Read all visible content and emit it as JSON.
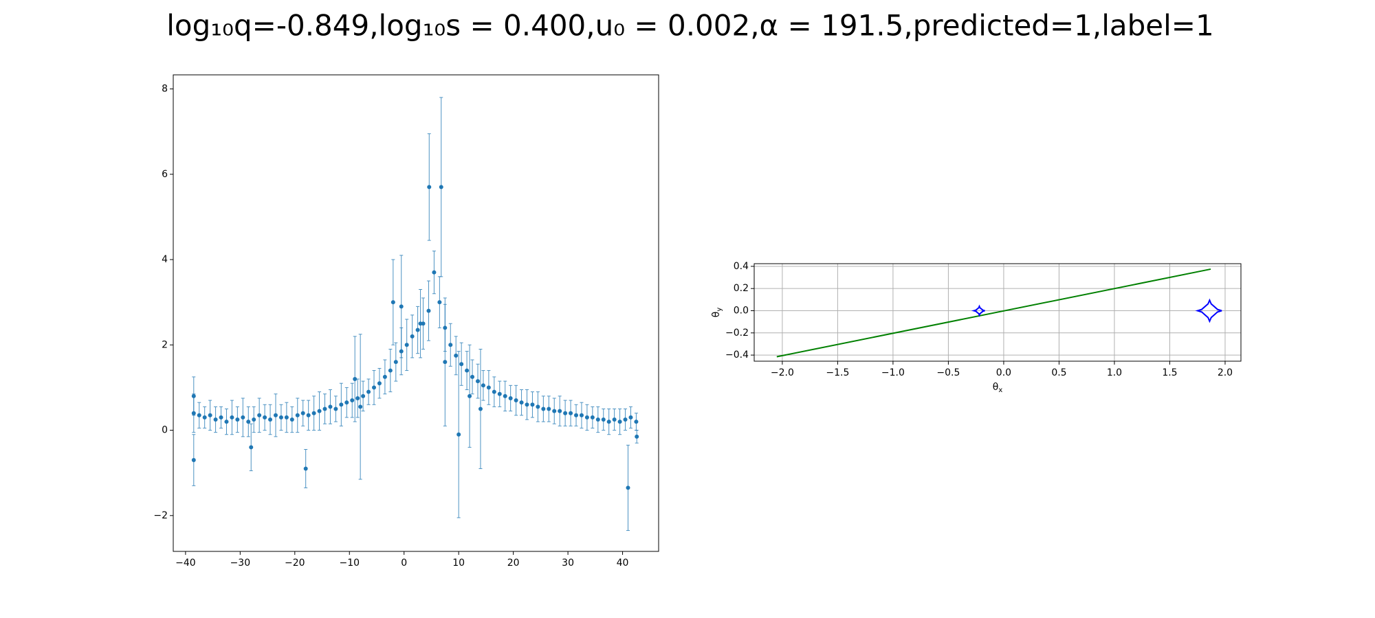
{
  "title": "log₁₀q=-0.849,log₁₀s = 0.400,u₀ = 0.002,α = 191.5,predicted=1,label=1",
  "chart_data": [
    {
      "type": "scatter",
      "xlim": [
        -42.25,
        46.6
      ],
      "ylim": [
        -2.84,
        8.33
      ],
      "xticks": [
        {
          "value": -40,
          "label": "−40"
        },
        {
          "value": -30,
          "label": "−30"
        },
        {
          "value": -20,
          "label": "−20"
        },
        {
          "value": -10,
          "label": "−10"
        },
        0,
        10,
        20,
        30,
        40
      ],
      "yticks": [
        {
          "value": -2,
          "label": "−2"
        },
        0,
        2,
        4,
        6,
        8
      ],
      "grid": false,
      "series": [
        {
          "color": "#1f77b4",
          "x": [
            -38.5,
            -37.5,
            -36.5,
            -35.5,
            -34.5,
            -33.5,
            -32.5,
            -31.5,
            -30.5,
            -29.5,
            -28.5,
            -27.5,
            -26.5,
            -25.5,
            -24.5,
            -23.5,
            -22.5,
            -21.5,
            -20.5,
            -19.5,
            -18.5,
            -17.5,
            -16.5,
            -15.5,
            -14.5,
            -13.5,
            -12.5,
            -11.5,
            -10.5,
            -9.5,
            -8.5,
            -7.5,
            -6.5,
            -5.5,
            -4.5,
            -3.5,
            -2.5,
            -1.5,
            -0.5,
            0.5,
            1.5,
            2.5,
            3.5,
            4.5,
            5.5,
            6.5,
            7.5,
            8.5,
            9.5,
            10.5,
            11.5,
            12.5,
            13.5,
            14.5,
            15.5,
            16.5,
            17.5,
            18.5,
            19.5,
            20.5,
            21.5,
            22.5,
            23.5,
            24.5,
            25.5,
            26.5,
            27.5,
            28.5,
            29.5,
            30.5,
            31.5,
            32.5,
            33.5,
            34.5,
            35.5,
            36.5,
            37.5,
            38.5,
            39.5,
            40.5,
            41.5,
            42.5,
            4.6,
            6.8,
            -38.5,
            -28,
            -18,
            41,
            42.6,
            10,
            -2,
            -0.5,
            -8,
            -38.5,
            -9,
            7.5,
            12,
            14,
            3
          ],
          "values": [
            0.4,
            0.35,
            0.3,
            0.35,
            0.25,
            0.3,
            0.2,
            0.3,
            0.25,
            0.3,
            0.2,
            0.25,
            0.35,
            0.3,
            0.25,
            0.35,
            0.3,
            0.3,
            0.25,
            0.35,
            0.4,
            0.35,
            0.4,
            0.45,
            0.5,
            0.55,
            0.5,
            0.6,
            0.65,
            0.7,
            0.75,
            0.8,
            0.9,
            1.0,
            1.1,
            1.25,
            1.4,
            1.6,
            1.85,
            2.0,
            2.2,
            2.35,
            2.5,
            2.8,
            3.7,
            3.0,
            2.4,
            2.0,
            1.75,
            1.55,
            1.4,
            1.25,
            1.15,
            1.05,
            1.0,
            0.9,
            0.85,
            0.8,
            0.75,
            0.7,
            0.65,
            0.6,
            0.6,
            0.55,
            0.5,
            0.5,
            0.45,
            0.45,
            0.4,
            0.4,
            0.35,
            0.35,
            0.3,
            0.3,
            0.25,
            0.25,
            0.2,
            0.25,
            0.2,
            0.25,
            0.3,
            0.2,
            5.7,
            5.7,
            -0.7,
            -0.4,
            -0.9,
            -1.35,
            -0.15,
            -0.1,
            3.0,
            2.9,
            0.55,
            0.8,
            1.2,
            1.6,
            0.8,
            0.5,
            2.5
          ],
          "errors": [
            0.45,
            0.3,
            0.25,
            0.35,
            0.3,
            0.25,
            0.3,
            0.4,
            0.3,
            0.45,
            0.35,
            0.3,
            0.4,
            0.3,
            0.35,
            0.5,
            0.3,
            0.35,
            0.3,
            0.4,
            0.3,
            0.35,
            0.4,
            0.45,
            0.35,
            0.4,
            0.3,
            0.5,
            0.35,
            0.4,
            0.45,
            0.35,
            0.3,
            0.4,
            0.35,
            0.4,
            0.5,
            0.45,
            0.55,
            0.6,
            0.5,
            0.55,
            0.6,
            0.7,
            0.5,
            0.6,
            0.55,
            0.5,
            0.45,
            0.5,
            0.45,
            0.4,
            0.4,
            0.35,
            0.4,
            0.35,
            0.3,
            0.35,
            0.3,
            0.35,
            0.3,
            0.35,
            0.3,
            0.35,
            0.3,
            0.3,
            0.3,
            0.35,
            0.3,
            0.3,
            0.25,
            0.3,
            0.3,
            0.25,
            0.3,
            0.25,
            0.3,
            0.25,
            0.3,
            0.25,
            0.25,
            0.2,
            1.25,
            2.1,
            0.6,
            0.55,
            0.45,
            1.0,
            0.15,
            1.95,
            1.0,
            1.2,
            1.7,
            0.45,
            1.0,
            1.5,
            1.2,
            1.4,
            0.8
          ]
        }
      ]
    },
    {
      "type": "line",
      "xlim": [
        -2.254,
        2.143
      ],
      "ylim": [
        -0.455,
        0.424
      ],
      "xticks": [
        {
          "value": -2.0,
          "label": "−2.0"
        },
        {
          "value": -1.5,
          "label": "−1.5"
        },
        {
          "value": -1.0,
          "label": "−1.0"
        },
        {
          "value": -0.5,
          "label": "−0.5"
        },
        {
          "value": 0,
          "label": "0.0"
        },
        0.5,
        {
          "value": 1.0,
          "label": "1.0"
        },
        1.5,
        {
          "value": 2.0,
          "label": "2.0"
        }
      ],
      "yticks": [
        {
          "value": -0.4,
          "label": "−0.4"
        },
        {
          "value": -0.2,
          "label": "−0.2"
        },
        {
          "value": 0,
          "label": "0.0"
        },
        0.2,
        0.4
      ],
      "grid": true,
      "xlabel": {
        "symbol": "θ",
        "subscript": "x"
      },
      "ylabel": {
        "symbol": "θ",
        "subscript": "y"
      },
      "series": [
        {
          "color": "#008000",
          "x": [
            -2.05,
            1.87
          ],
          "values": [
            -0.415,
            0.375
          ]
        },
        {
          "color": "#0000ff",
          "x": [
            -0.17,
            -0.188,
            -0.214,
            -0.22,
            -0.226,
            -0.252,
            -0.27,
            -0.252,
            -0.226,
            -0.22,
            -0.214,
            -0.188,
            -0.17
          ],
          "values": [
            0,
            0.005,
            0.026,
            0.04,
            0.026,
            0.005,
            0,
            -0.005,
            -0.026,
            -0.04,
            -0.026,
            -0.005,
            0
          ]
        },
        {
          "color": "#0000ff",
          "x": [
            1.97,
            1.931,
            1.874,
            1.86,
            1.846,
            1.789,
            1.75,
            1.789,
            1.846,
            1.86,
            1.874,
            1.931,
            1.97
          ],
          "values": [
            0,
            0.012,
            0.062,
            0.095,
            0.062,
            0.012,
            0,
            -0.012,
            -0.062,
            -0.095,
            -0.062,
            -0.012,
            0
          ]
        }
      ]
    }
  ]
}
